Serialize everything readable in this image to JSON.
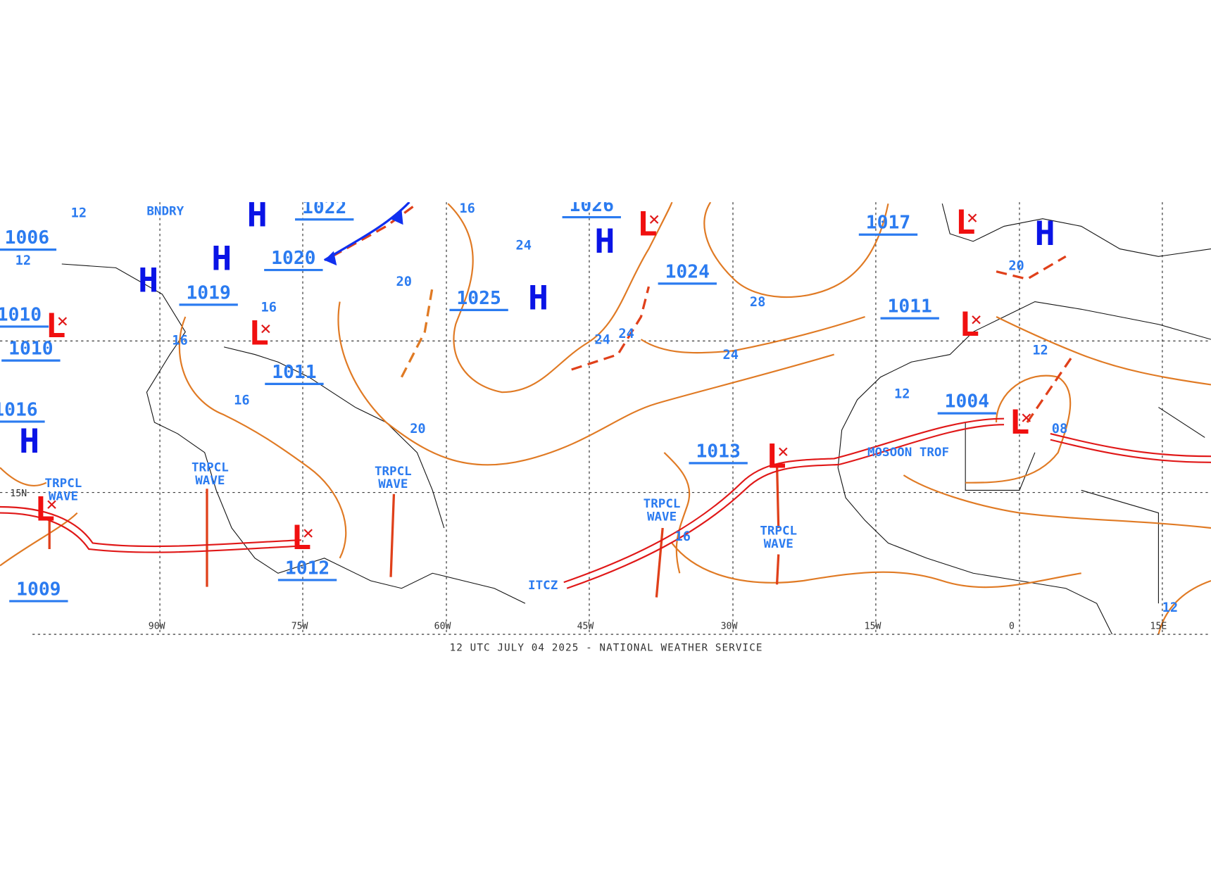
{
  "highs": [
    "H",
    "H",
    "H",
    "H",
    "H",
    "H",
    "H"
  ],
  "lows": [
    "L",
    "L",
    "L",
    "L",
    "L",
    "L",
    "L",
    "L",
    "L"
  ],
  "pressure_labels": [
    "1022",
    "1026",
    "1020",
    "1019",
    "1025",
    "1024",
    "1017",
    "1011",
    "1011",
    "1010",
    "1010",
    "1006",
    "1016",
    "1012",
    "1009",
    "1013",
    "1004"
  ],
  "isobar_labels": [
    "16",
    "24",
    "20",
    "16",
    "16",
    "16",
    "24",
    "24",
    "28",
    "24",
    "20",
    "16",
    "12",
    "12",
    "08",
    "20",
    "12",
    "12",
    "12"
  ],
  "features": [
    {
      "lines": [
        "TRPCL",
        "WAVE"
      ]
    },
    {
      "lines": [
        "TRPCL",
        "WAVE"
      ]
    },
    {
      "lines": [
        "TRPCL",
        "WAVE"
      ]
    },
    {
      "lines": [
        "TRPCL",
        "WAVE"
      ]
    },
    {
      "lines": [
        "TRPCL",
        "WAVE"
      ]
    },
    {
      "lines": [
        "ITCZ"
      ]
    },
    {
      "lines": [
        "MOSOON TROF"
      ]
    },
    {
      "lines": [
        "BNDRY"
      ]
    }
  ],
  "longitudes": [
    "90W",
    "75W",
    "60W",
    "45W",
    "30W",
    "15W",
    "0",
    "15E"
  ],
  "latitudes": [
    "15N"
  ],
  "footer": "12 UTC JULY 04 2025 - NATIONAL WEATHER SERVICE"
}
